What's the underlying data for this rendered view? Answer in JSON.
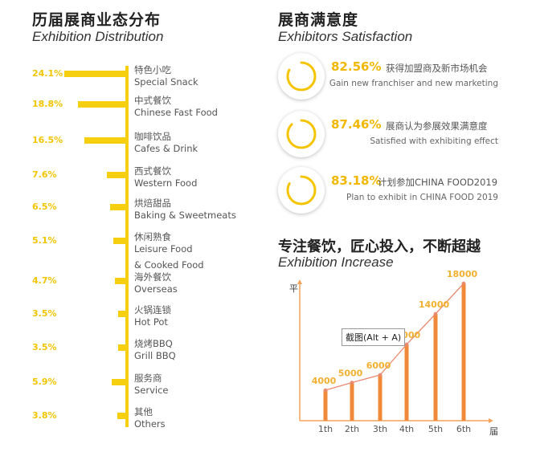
{
  "distribution": {
    "title_cn": "历届展商业态分布",
    "title_en": "Exhibition Distribution",
    "chart_data": {
      "type": "bar",
      "orientation": "horizontal",
      "categories": [
        {
          "cn": "特色小吃",
          "en": "Special Snack",
          "value": 24.1,
          "label": "24.1%"
        },
        {
          "cn": "中式餐饮",
          "en": "Chinese Fast Food",
          "value": 18.8,
          "label": "18.8%"
        },
        {
          "cn": "咖啡饮品",
          "en": "Cafes & Drink",
          "value": 16.5,
          "label": "16.5%"
        },
        {
          "cn": "西式餐饮",
          "en": "Western Food",
          "value": 7.6,
          "label": "7.6%"
        },
        {
          "cn": "烘焙甜品",
          "en": "Baking & Sweetmeats",
          "value": 6.5,
          "label": "6.5%"
        },
        {
          "cn": "休闲熟食",
          "en": "Leisure Food",
          "en2": "& Cooked Food",
          "value": 5.1,
          "label": "5.1%"
        },
        {
          "cn": "海外餐饮",
          "en": "Overseas",
          "value": 4.7,
          "label": "4.7%"
        },
        {
          "cn": "火锅连锁",
          "en": "Hot Pot",
          "value": 3.5,
          "label": "3.5%"
        },
        {
          "cn": "烧烤BBQ",
          "en": "Grill BBQ",
          "value": 3.5,
          "label": "3.5%"
        },
        {
          "cn": "服务商",
          "en": "Service",
          "value": 5.9,
          "label": "5.9%"
        },
        {
          "cn": "其他",
          "en": "Others",
          "value": 3.8,
          "label": "3.8%"
        }
      ]
    }
  },
  "satisfaction": {
    "title_cn": "展商满意度",
    "title_en": "Exhibitors Satisfaction",
    "items": [
      {
        "pct": "82.56%",
        "value": 82.56,
        "cn": "获得加盟商及新市场机会",
        "en": "Gain new franchiser and new marketing"
      },
      {
        "pct": "87.46%",
        "value": 87.46,
        "cn": "展商认为参展效果满意度",
        "en": "Satisfied with exhibiting effect"
      },
      {
        "pct": "83.18%",
        "value": 83.18,
        "cn": "计划参加CHINA FOOD2019",
        "en": "Plan to exhibit in CHINA FOOD 2019"
      }
    ],
    "ring_color": "#f5c400"
  },
  "increase": {
    "title_cn": "专注餐饮，匠心投入，不断超越",
    "title_en": "Exhibition Increase",
    "y_unit": "平",
    "x_unit": "届",
    "tooltip": "截图(Alt + A)",
    "chart_data": {
      "type": "bar",
      "categories": [
        "1th",
        "2th",
        "3th",
        "4th",
        "5th",
        "6th"
      ],
      "values": [
        4000,
        5000,
        6000,
        10000,
        14000,
        18000
      ],
      "labels": [
        "4000",
        "5000",
        "6000",
        "10000",
        "14000",
        "18000"
      ],
      "ylim": [
        0,
        18000
      ]
    },
    "colors": {
      "bar": "#f08a3a",
      "line": "#e98a6e",
      "label": "#f2b030",
      "axis": "#f4a35a"
    }
  }
}
